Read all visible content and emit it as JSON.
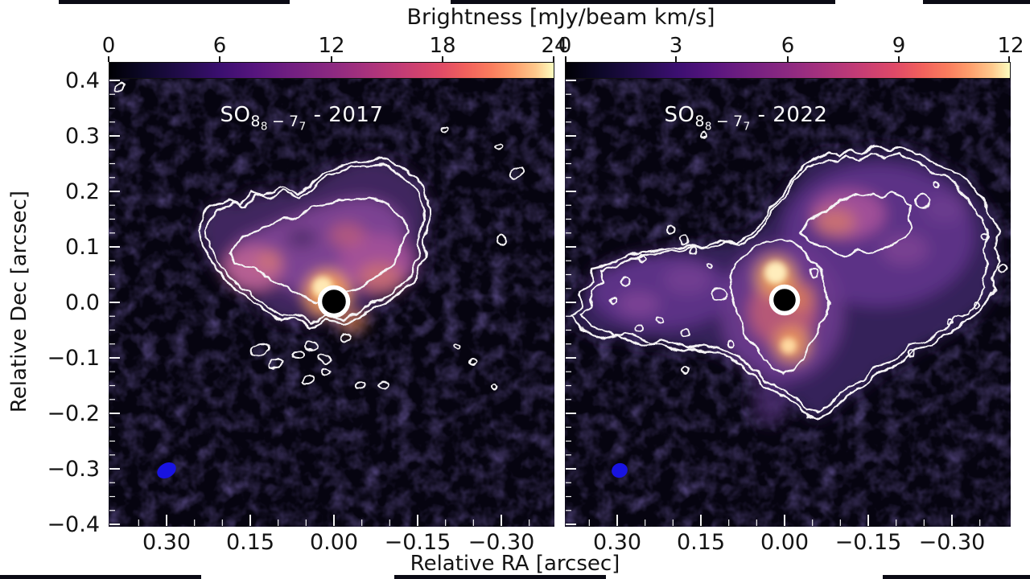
{
  "colorbar": {
    "title": "Brightness [mJy/beam km/s]",
    "left_ticks": [
      "0",
      "6",
      "12",
      "18",
      "24"
    ],
    "right_ticks": [
      "0",
      "3",
      "6",
      "9",
      "12"
    ],
    "colormap_name": "magma",
    "gradient_hex": [
      "#000004",
      "#3b0f70",
      "#8c2981",
      "#de4968",
      "#fe9f6d",
      "#fcfdbf"
    ]
  },
  "panels": {
    "left": {
      "label": {
        "molecule": "SO",
        "j_upper": "8",
        "j_upper_sub": "8",
        "separator": "−",
        "j_lower": "7",
        "j_lower_sub": "7",
        "year_suffix": "- 2017"
      }
    },
    "right": {
      "label": {
        "molecule": "SO",
        "j_upper": "8",
        "j_upper_sub": "8",
        "separator": "−",
        "j_lower": "7",
        "j_lower_sub": "7",
        "year_suffix": "- 2022"
      }
    }
  },
  "axes": {
    "y_label": "Relative Dec [arcsec]",
    "x_label": "Relative RA [arcsec]",
    "y_ticks": [
      "0.4",
      "0.3",
      "0.2",
      "0.1",
      "0.0",
      "−0.1",
      "−0.2",
      "−0.3",
      "−0.4"
    ],
    "x_ticks": [
      "0.30",
      "0.15",
      "0.00",
      "−0.15",
      "−0.30"
    ]
  },
  "markers": {
    "beam_color": "#1813e0",
    "contour_color": "#f5f3f5",
    "star_mask": "black circle with white ring at origin",
    "panel_background": "#060410"
  },
  "chart_data": [
    {
      "type": "heatmap",
      "title": "SO 8_8 - 7_7 - 2017",
      "colorbar_label": "Brightness [mJy/beam km/s]",
      "colorbar_range": [
        0,
        24
      ],
      "colorbar_ticks": [
        0,
        6,
        12,
        18,
        24
      ],
      "x_axis": {
        "label": "Relative RA [arcsec]",
        "range": [
          0.4,
          -0.4
        ],
        "ticks": [
          0.3,
          0.15,
          0.0,
          -0.15,
          -0.3
        ]
      },
      "y_axis": {
        "label": "Relative Dec [arcsec]",
        "range": [
          -0.4,
          0.4
        ],
        "ticks": [
          0.4,
          0.3,
          0.2,
          0.1,
          0.0,
          -0.1,
          -0.2,
          -0.3,
          -0.4
        ]
      },
      "description": "Compact heart-shaped SO emission around masked central star at (0,0); bright yellow-orange core near star, purple extended envelope, white brightness contours, blue synthesized beam ellipse at lower left near (0.30,-0.30)",
      "legend_position": "none",
      "grid": false
    },
    {
      "type": "heatmap",
      "title": "SO 8_8 - 7_7 - 2022",
      "colorbar_label": "Brightness [mJy/beam km/s]",
      "colorbar_range": [
        0,
        12
      ],
      "colorbar_ticks": [
        0,
        3,
        6,
        9,
        12
      ],
      "x_axis": {
        "label": "Relative RA [arcsec]",
        "range": [
          0.4,
          -0.4
        ],
        "ticks": [
          0.3,
          0.15,
          0.0,
          -0.15,
          -0.3
        ]
      },
      "y_axis": {
        "label": "Relative Dec [arcsec]",
        "range": [
          -0.4,
          0.4
        ],
        "ticks": [
          0.4,
          0.3,
          0.2,
          0.1,
          0.0,
          -0.1,
          -0.2,
          -0.3,
          -0.4
        ]
      },
      "description": "Extended butterfly-shaped SO emission: elongated left wing toward positive RA, large upper-right lobe, bright compact core around masked star at (0,0); wiggly white contours with many small islands; blue beam ellipse at lower left near (0.30,-0.30)",
      "legend_position": "none",
      "grid": false
    }
  ]
}
